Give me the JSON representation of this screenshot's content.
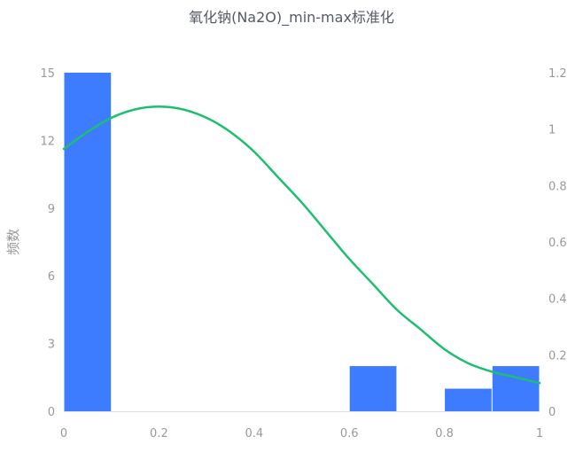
{
  "chart_data": {
    "type": "bar",
    "title": "氧化钠(Na2O)_min-max标准化",
    "xlabel": "",
    "ylabel": "频数",
    "y2label": "",
    "xlim": [
      0,
      1
    ],
    "ylim": [
      0,
      15
    ],
    "y2lim": [
      0,
      1.2
    ],
    "x_ticks": [
      "0",
      "0.2",
      "0.4",
      "0.6",
      "0.8",
      "1"
    ],
    "x_tick_values": [
      0,
      0.2,
      0.4,
      0.6,
      0.8,
      1
    ],
    "y_ticks": [
      "0",
      "3",
      "6",
      "9",
      "12",
      "15"
    ],
    "y_tick_values": [
      0,
      3,
      6,
      9,
      12,
      15
    ],
    "y2_ticks": [
      "0",
      "0.2",
      "0.4",
      "0.6",
      "0.8",
      "1",
      "1.2"
    ],
    "y2_tick_values": [
      0,
      0.2,
      0.4,
      0.6,
      0.8,
      1,
      1.2
    ],
    "grid": false,
    "bins": [
      {
        "x0": 0.0,
        "x1": 0.1,
        "count": 15
      },
      {
        "x0": 0.6,
        "x1": 0.7,
        "count": 2
      },
      {
        "x0": 0.8,
        "x1": 0.9,
        "count": 1
      },
      {
        "x0": 0.9,
        "x1": 1.0,
        "count": 2
      }
    ],
    "density_curve": {
      "x": [
        0,
        0.05,
        0.1,
        0.15,
        0.2,
        0.25,
        0.3,
        0.35,
        0.4,
        0.45,
        0.5,
        0.55,
        0.6,
        0.65,
        0.7,
        0.75,
        0.8,
        0.85,
        0.9,
        0.95,
        1.0
      ],
      "y": [
        0.93,
        0.99,
        1.04,
        1.07,
        1.08,
        1.07,
        1.04,
        0.99,
        0.92,
        0.83,
        0.74,
        0.64,
        0.54,
        0.45,
        0.36,
        0.29,
        0.22,
        0.17,
        0.14,
        0.12,
        0.1
      ]
    },
    "colors": {
      "bar": "#3d7cff",
      "curve": "#1dbf6f",
      "axis_text": "#999999",
      "title": "#555a63",
      "axis_line": "#dddddd"
    }
  }
}
